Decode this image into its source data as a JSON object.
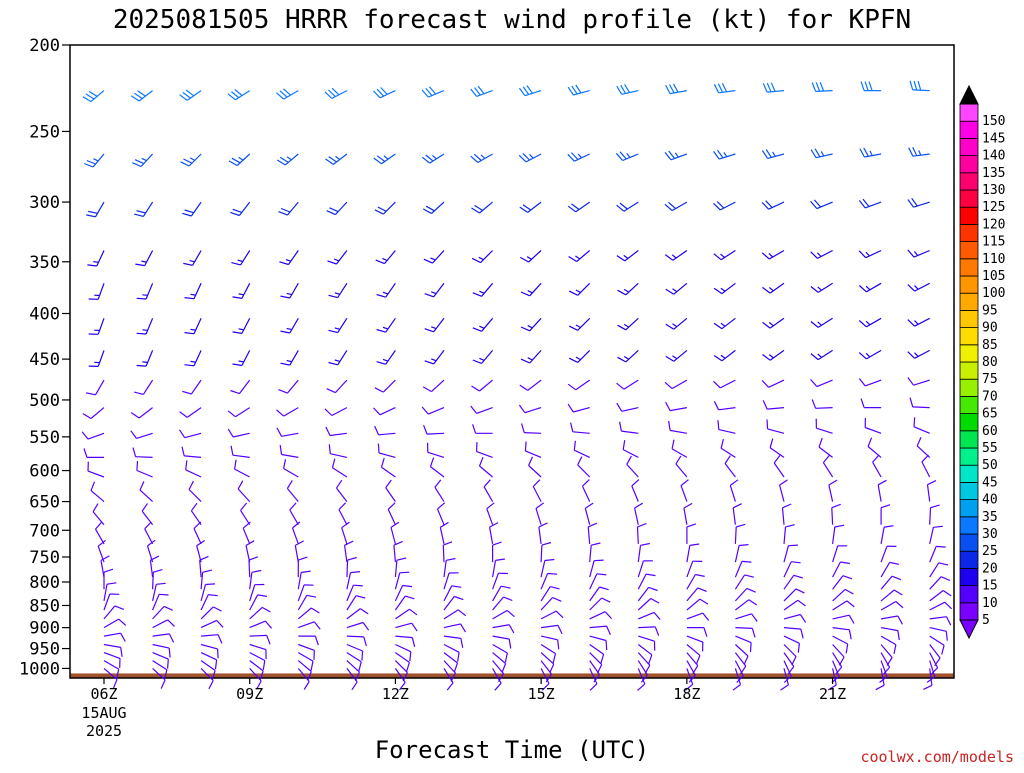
{
  "chart_data": {
    "type": "wind-barb-profile",
    "title": "2025081505 HRRR forecast wind profile (kt) for KPFN",
    "xlabel": "Forecast Time (UTC)",
    "ylabel": "",
    "credit": "coolwx.com/models",
    "x_ticks": [
      {
        "label": "06Z",
        "hour": 6,
        "sub": [
          "15AUG",
          "2025"
        ]
      },
      {
        "label": "09Z",
        "hour": 9,
        "sub": []
      },
      {
        "label": "12Z",
        "hour": 12,
        "sub": []
      },
      {
        "label": "15Z",
        "hour": 15,
        "sub": []
      },
      {
        "label": "18Z",
        "hour": 18,
        "sub": []
      },
      {
        "label": "21Z",
        "hour": 21,
        "sub": []
      }
    ],
    "x_range_hours": [
      5.3,
      23.5
    ],
    "hours": [
      6,
      7,
      8,
      9,
      10,
      11,
      12,
      13,
      14,
      15,
      16,
      17,
      18,
      19,
      20,
      21,
      22,
      23
    ],
    "y_axis_pressure_mb": [
      200,
      250,
      300,
      350,
      400,
      450,
      500,
      550,
      600,
      650,
      700,
      750,
      800,
      850,
      900,
      950,
      1000
    ],
    "y_range_mb": [
      200,
      1025
    ],
    "y_scale": "log",
    "ground_pressure_mb": 1013,
    "colorbar": {
      "values": [
        5,
        10,
        15,
        20,
        25,
        30,
        35,
        40,
        45,
        50,
        55,
        60,
        65,
        70,
        75,
        80,
        85,
        90,
        95,
        100,
        105,
        110,
        115,
        120,
        125,
        130,
        135,
        140,
        145,
        150
      ],
      "colors": [
        "#7a00ff",
        "#5500ff",
        "#1d00f0",
        "#0a28e6",
        "#0a50f0",
        "#0a78ff",
        "#00a0f0",
        "#00c8e0",
        "#00e6c8",
        "#00f08c",
        "#00e650",
        "#00dc00",
        "#46ea00",
        "#96f000",
        "#c8f000",
        "#f0f000",
        "#ffdc00",
        "#ffc800",
        "#ffaa00",
        "#ff9600",
        "#ff7800",
        "#ff5a00",
        "#ff3200",
        "#ff0000",
        "#ff0040",
        "#ff0070",
        "#ff00a0",
        "#ff00c8",
        "#ff00e6",
        "#ff46ff"
      ]
    },
    "ground_color": "#a0522d",
    "profile_levels_mb": [
      225,
      265,
      300,
      340,
      370,
      405,
      440,
      475,
      510,
      545,
      580,
      610,
      650,
      690,
      725,
      760,
      790,
      815,
      840,
      860,
      880,
      900,
      920,
      940,
      960,
      980,
      1000,
      1010
    ],
    "wind_speed_kt_by_level": [
      30,
      25,
      20,
      15,
      15,
      15,
      15,
      10,
      10,
      10,
      10,
      10,
      10,
      10,
      10,
      10,
      10,
      10,
      10,
      10,
      10,
      10,
      10,
      10,
      10,
      10,
      10,
      10
    ],
    "wind_direction_deg_by_level": [
      250,
      240,
      230,
      225,
      220,
      220,
      220,
      230,
      250,
      270,
      290,
      310,
      330,
      340,
      350,
      0,
      10,
      20,
      30,
      40,
      60,
      80,
      100,
      120,
      130,
      140,
      150,
      160
    ]
  }
}
